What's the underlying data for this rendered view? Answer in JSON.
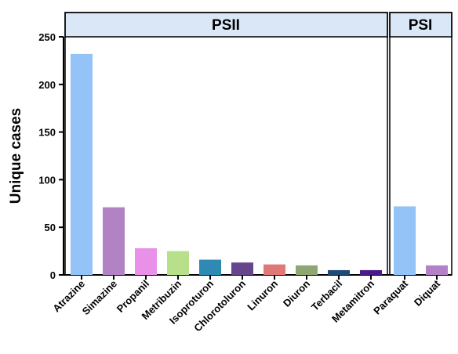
{
  "chart_data": {
    "type": "bar",
    "ylabel": "Unique cases",
    "xlabel": "",
    "ylim": [
      0,
      250
    ],
    "yticks": [
      0,
      50,
      100,
      150,
      200,
      250
    ],
    "grid": false,
    "groups": [
      {
        "name": "PSII",
        "categories": [
          "Atrazine",
          "Simazine",
          "Propanil",
          "Metribuzin",
          "Isoproturon",
          "Chlorotoluron",
          "Linuron",
          "Diuron",
          "Terbacil",
          "Metamitron"
        ]
      },
      {
        "name": "PSI",
        "categories": [
          "Paraquat",
          "Diquat"
        ]
      }
    ],
    "categories": [
      "Atrazine",
      "Simazine",
      "Propanil",
      "Metribuzin",
      "Isoproturon",
      "Chlorotoluron",
      "Linuron",
      "Diuron",
      "Terbacil",
      "Metamitron",
      "Paraquat",
      "Diquat"
    ],
    "values": [
      232,
      71,
      28,
      25,
      16,
      13,
      11,
      10,
      5,
      5,
      72,
      10
    ],
    "colors": [
      "#93c3f7",
      "#b283c4",
      "#e991e8",
      "#b8e08a",
      "#2f8ab3",
      "#67458c",
      "#e07878",
      "#8da672",
      "#1e4a78",
      "#4a1a8a",
      "#93c3f7",
      "#b283c4"
    ],
    "header_fill": "#d9e7f6"
  }
}
